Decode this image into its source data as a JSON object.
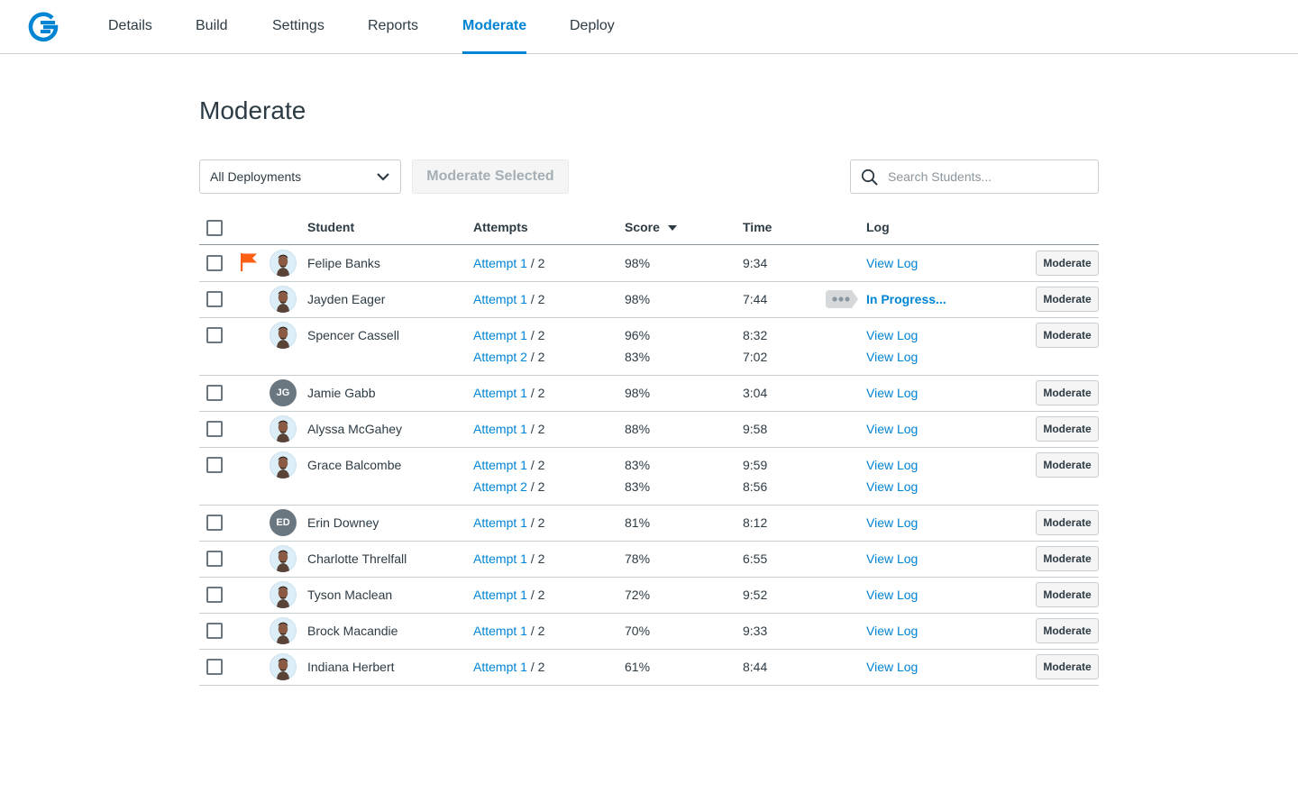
{
  "nav": {
    "tabs": [
      "Details",
      "Build",
      "Settings",
      "Reports",
      "Moderate",
      "Deploy"
    ],
    "active_tab": "Moderate"
  },
  "page": {
    "title": "Moderate"
  },
  "toolbar": {
    "deployment_select": "All Deployments",
    "moderate_selected_label": "Moderate Selected",
    "search_placeholder": "Search Students..."
  },
  "table": {
    "columns": {
      "student": "Student",
      "attempts": "Attempts",
      "score": "Score",
      "time": "Time",
      "log": "Log"
    },
    "sort_column": "Score",
    "sort_direction": "descending",
    "moderate_label": "Moderate",
    "attempts_total": "/ 2",
    "rows": [
      {
        "name": "Felipe Banks",
        "flagged": true,
        "avatar": "photo",
        "initials": "",
        "attempts": [
          {
            "label": "Attempt 1",
            "score": "98%",
            "time": "9:34",
            "log": "View Log"
          }
        ]
      },
      {
        "name": "Jayden Eager",
        "flagged": false,
        "avatar": "photo",
        "initials": "",
        "in_progress": true,
        "attempts": [
          {
            "label": "Attempt 1",
            "score": "98%",
            "time": "7:44",
            "log": "In Progress..."
          }
        ]
      },
      {
        "name": "Spencer Cassell",
        "flagged": false,
        "avatar": "photo",
        "initials": "",
        "attempts": [
          {
            "label": "Attempt 1",
            "score": "96%",
            "time": "8:32",
            "log": "View Log"
          },
          {
            "label": "Attempt 2",
            "score": "83%",
            "time": "7:02",
            "log": "View Log"
          }
        ]
      },
      {
        "name": "Jamie Gabb",
        "flagged": false,
        "avatar": "initials",
        "initials": "JG",
        "attempts": [
          {
            "label": "Attempt 1",
            "score": "98%",
            "time": "3:04",
            "log": "View Log"
          }
        ]
      },
      {
        "name": "Alyssa McGahey",
        "flagged": false,
        "avatar": "photo",
        "initials": "",
        "attempts": [
          {
            "label": "Attempt 1",
            "score": "88%",
            "time": "9:58",
            "log": "View Log"
          }
        ]
      },
      {
        "name": "Grace Balcombe",
        "flagged": false,
        "avatar": "photo",
        "initials": "",
        "attempts": [
          {
            "label": "Attempt 1",
            "score": "83%",
            "time": "9:59",
            "log": "View Log"
          },
          {
            "label": "Attempt 2",
            "score": "83%",
            "time": "8:56",
            "log": "View Log"
          }
        ]
      },
      {
        "name": "Erin Downey",
        "flagged": false,
        "avatar": "initials",
        "initials": "ED",
        "attempts": [
          {
            "label": "Attempt 1",
            "score": "81%",
            "time": "8:12",
            "log": "View Log"
          }
        ]
      },
      {
        "name": "Charlotte Threlfall",
        "flagged": false,
        "avatar": "photo",
        "initials": "",
        "attempts": [
          {
            "label": "Attempt 1",
            "score": "78%",
            "time": "6:55",
            "log": "View Log"
          }
        ]
      },
      {
        "name": "Tyson Maclean",
        "flagged": false,
        "avatar": "photo",
        "initials": "",
        "attempts": [
          {
            "label": "Attempt 1",
            "score": "72%",
            "time": "9:52",
            "log": "View Log"
          }
        ]
      },
      {
        "name": "Brock Macandie",
        "flagged": false,
        "avatar": "photo",
        "initials": "",
        "attempts": [
          {
            "label": "Attempt 1",
            "score": "70%",
            "time": "9:33",
            "log": "View Log"
          }
        ]
      },
      {
        "name": "Indiana Herbert",
        "flagged": false,
        "avatar": "photo",
        "initials": "",
        "attempts": [
          {
            "label": "Attempt 1",
            "score": "61%",
            "time": "8:44",
            "log": "View Log"
          }
        ]
      }
    ]
  },
  "colors": {
    "accent": "#0084d4",
    "flag": "#fc5e13",
    "text": "#2d3b45",
    "border": "#c7cdd1"
  }
}
